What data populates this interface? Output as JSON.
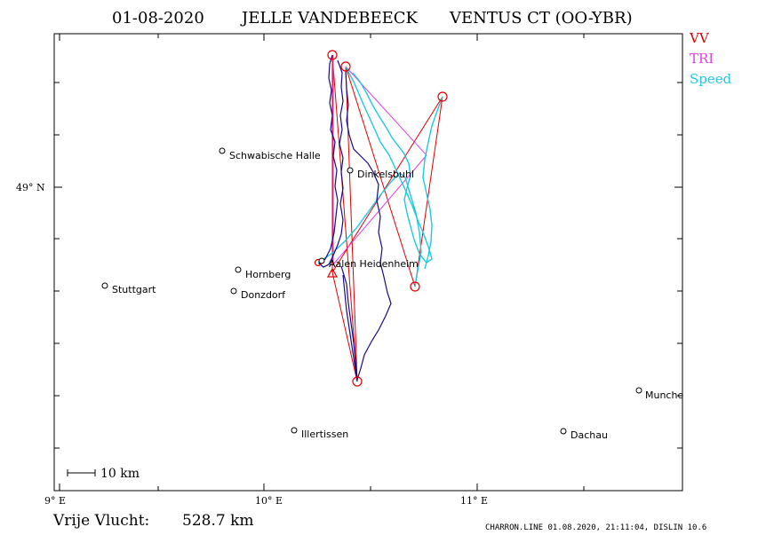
{
  "header": {
    "date": "01-08-2020",
    "pilot": "JELLE VANDEBEECK",
    "glider": "VENTUS CT (OO-YBR)"
  },
  "legend": [
    {
      "label": "VV",
      "color": "#e00000"
    },
    {
      "label": "TRI",
      "color": "#e040e0"
    },
    {
      "label": "Speed",
      "color": "#20c8e0"
    }
  ],
  "colors": {
    "track_main": "#1a0a8a",
    "track_speed": "#20c8e0",
    "task_vv": "#e00000",
    "task_tri": "#e040e0"
  },
  "axes": {
    "lat_label": "49° N",
    "lon_labels": [
      "9° E",
      "10° E",
      "11° E"
    ]
  },
  "cities": [
    {
      "name": "Schwabische Halle"
    },
    {
      "name": "Dinkelsbuhl"
    },
    {
      "name": "Aalen Heidenheim"
    },
    {
      "name": "Hornberg"
    },
    {
      "name": "Stuttgart"
    },
    {
      "name": "Donzdorf"
    },
    {
      "name": "Illertissen"
    },
    {
      "name": "Dachau"
    },
    {
      "name": "Munche"
    }
  ],
  "scale": {
    "label": "10 km"
  },
  "footer": {
    "distance_label": "Vrije Vlucht:",
    "distance_value": "528.7 km",
    "info": "CHARRON.LINE 01.08.2020, 21:11:04, DISLIN 10.6"
  }
}
